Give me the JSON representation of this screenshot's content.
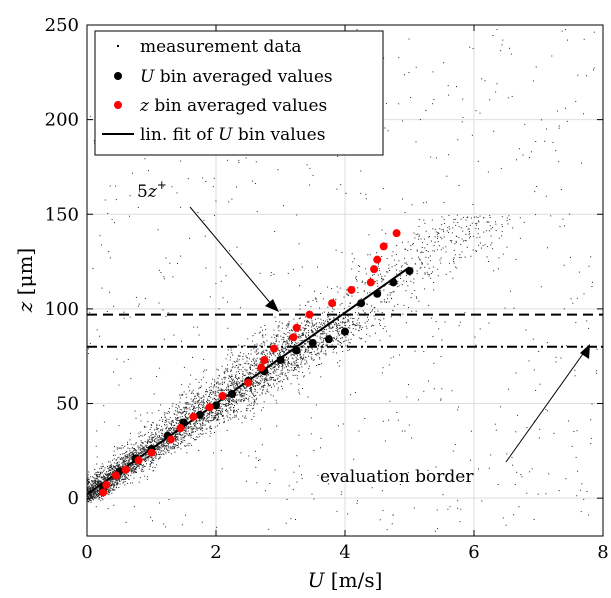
{
  "chart_data": {
    "type": "scatter",
    "xlabel": "U [m/s]",
    "ylabel": "z [μm]",
    "xlim": [
      0,
      8
    ],
    "ylim": [
      -20,
      250
    ],
    "xticks": [
      0,
      2,
      4,
      6,
      8
    ],
    "yticks": [
      0,
      50,
      100,
      150,
      200,
      250
    ],
    "grid": true,
    "legend_position": "top-left",
    "series": [
      {
        "name": "measurement data",
        "kind": "scatter-cloud",
        "color": "#000000",
        "note": "dense cloud of small points, concentrated along the fit line for U<3 m/s, sparse for larger z"
      },
      {
        "name": "U bin averaged values",
        "kind": "markers",
        "color": "#000000",
        "x": [
          0.25,
          0.5,
          0.75,
          1.0,
          1.25,
          1.5,
          1.75,
          2.0,
          2.25,
          2.5,
          2.75,
          3.0,
          3.25,
          3.5,
          3.75,
          4.0,
          4.25,
          4.5,
          4.75,
          5.0
        ],
        "y": [
          5,
          14,
          21,
          26,
          33,
          40,
          44,
          49,
          55,
          62,
          67,
          73,
          78,
          82,
          84,
          88,
          103,
          108,
          114,
          120
        ]
      },
      {
        "name": "z bin averaged values",
        "kind": "markers",
        "color": "#ff0000",
        "x": [
          0.25,
          0.3,
          0.45,
          0.6,
          0.8,
          1.0,
          1.3,
          1.45,
          1.65,
          1.9,
          2.1,
          2.5,
          2.7,
          2.75,
          2.9,
          3.2,
          3.25,
          3.45,
          3.8,
          4.1,
          4.4,
          4.45,
          4.5,
          4.6,
          4.8
        ],
        "y": [
          3,
          7,
          12,
          15,
          20,
          24,
          31,
          37,
          43,
          48,
          54,
          61,
          69,
          73,
          79,
          85,
          90,
          97,
          103,
          110,
          114,
          121,
          126,
          133,
          140
        ]
      },
      {
        "name": "lin. fit of U bin values",
        "kind": "line",
        "color": "#000000",
        "x": [
          0,
          5.0
        ],
        "y": [
          2,
          122
        ]
      }
    ],
    "reference_lines": [
      {
        "label": "5z⁺",
        "y": 97,
        "style": "dashed"
      },
      {
        "label": "evaluation border",
        "y": 80,
        "style": "dash-dot"
      }
    ]
  },
  "legend": {
    "items": [
      {
        "label_prefix": "",
        "label_italic": "",
        "label_suffix": "measurement data"
      },
      {
        "label_prefix": "",
        "label_italic": "U",
        "label_suffix": " bin averaged values"
      },
      {
        "label_prefix": "",
        "label_italic": "z",
        "label_suffix": " bin averaged values"
      },
      {
        "label_prefix": "lin. fit of ",
        "label_italic": "U",
        "label_suffix": " bin values"
      }
    ]
  },
  "annotations": {
    "five_z_plus": {
      "italic": "z",
      "prefix": "5",
      "sup": "+"
    },
    "evaluation_border": "evaluation border"
  },
  "axes": {
    "xlabel_italic": "U",
    "xlabel_rest": " [m/s]",
    "ylabel_italic": "z",
    "ylabel_rest": " [μm]"
  }
}
